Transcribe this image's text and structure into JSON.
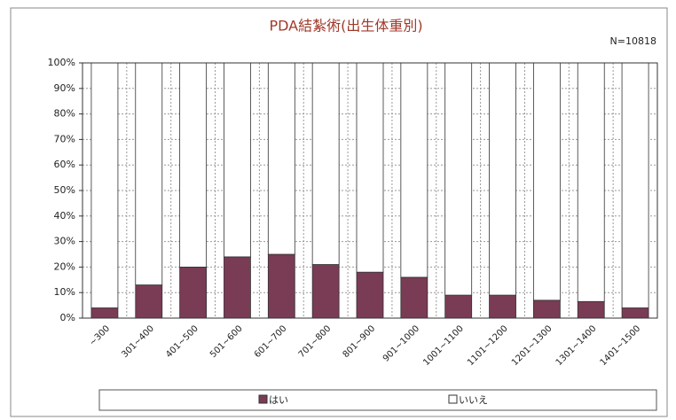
{
  "chart_data": {
    "type": "stacked_bar_percent",
    "title": "PDA結紮術(出生体重別)",
    "annotation": "N=10818",
    "categories": [
      "~300",
      "301~400",
      "401~500",
      "501~600",
      "601~700",
      "701~800",
      "801~900",
      "901~1000",
      "1001~1100",
      "1101~1200",
      "1201~1300",
      "1301~1400",
      "1401~1500"
    ],
    "series": [
      {
        "name": "はい",
        "color": "#7a3b55",
        "values": [
          4,
          13,
          20,
          24,
          25,
          21,
          18,
          16,
          9,
          9,
          7,
          6.5,
          4
        ]
      },
      {
        "name": "いいえ",
        "color": "#ffffff",
        "values": [
          96,
          87,
          80,
          76,
          75,
          79,
          82,
          84,
          91,
          91,
          93,
          93.5,
          96
        ]
      }
    ],
    "ylim": [
      0,
      100
    ],
    "yticks": [
      {
        "value": 0,
        "label": "0%"
      },
      {
        "value": 10,
        "label": "10%"
      },
      {
        "value": 20,
        "label": "20%"
      },
      {
        "value": 30,
        "label": "30%"
      },
      {
        "value": 40,
        "label": "40%"
      },
      {
        "value": 50,
        "label": "50%"
      },
      {
        "value": 60,
        "label": "60%"
      },
      {
        "value": 70,
        "label": "70%"
      },
      {
        "value": 80,
        "label": "80%"
      },
      {
        "value": 90,
        "label": "90%"
      },
      {
        "value": 100,
        "label": "100%"
      }
    ],
    "grid": true
  }
}
